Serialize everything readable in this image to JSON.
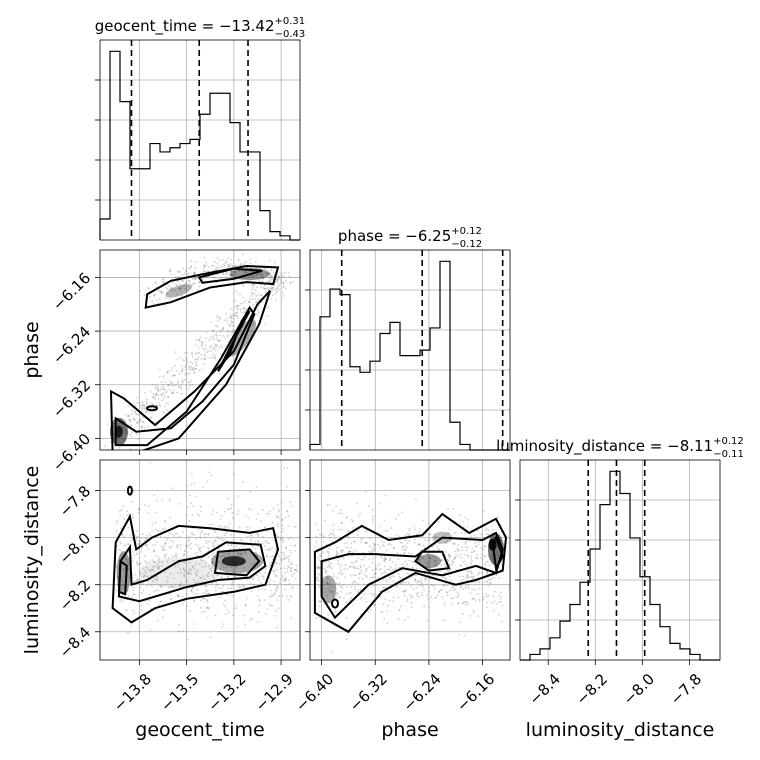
{
  "chart_data": {
    "type": "corner",
    "parameters": [
      "geocent_time",
      "phase",
      "luminosity_distance"
    ],
    "axis_labels": {
      "x": [
        "geocent_time",
        "phase",
        "luminosity_distance"
      ],
      "y": [
        "phase",
        "luminosity_distance"
      ]
    },
    "titles": [
      {
        "param": "geocent_time",
        "prefix": "geocent_time = ",
        "median": "−13.42",
        "plus": "+0.31",
        "minus": "−0.43"
      },
      {
        "param": "phase",
        "prefix": "phase = ",
        "median": "−6.25",
        "plus": "+0.12",
        "minus": "−0.12"
      },
      {
        "param": "luminosity_distance",
        "prefix": "luminosity_distance = ",
        "median": "−8.11",
        "plus": "+0.12",
        "minus": "−0.11"
      }
    ],
    "ranges": {
      "geocent_time": [
        -14.05,
        -12.78
      ],
      "phase": [
        -6.4173,
        -6.1191
      ],
      "luminosity_distance": [
        -8.52,
        -7.67
      ]
    },
    "ticks": {
      "geocent_time": [
        -13.8,
        -13.5,
        -13.2,
        -12.9
      ],
      "phase": [
        -6.4,
        -6.32,
        -6.24,
        -6.16
      ],
      "luminosity_distance": [
        -8.4,
        -8.2,
        -8.0,
        -7.8
      ]
    },
    "tick_labels": {
      "geocent_time": [
        "−13.8",
        "−13.5",
        "−13.2",
        "−12.9"
      ],
      "phase": [
        "−6.40",
        "−6.32",
        "−6.24",
        "−6.16"
      ],
      "luminosity_distance": [
        "−8.4",
        "−8.2",
        "−8.0",
        "−7.8"
      ]
    },
    "quantiles": {
      "geocent_time": [
        -13.85,
        -13.42,
        -13.11
      ],
      "phase": [
        -6.37,
        -6.25,
        -6.13
      ],
      "luminosity_distance": [
        -8.23,
        -8.11,
        -7.99
      ]
    },
    "histograms": {
      "geocent_time": {
        "edges_start": -14.05,
        "bin_width": 0.0635,
        "counts": [
          5,
          45,
          33,
          17,
          17,
          23,
          21,
          22,
          23,
          24,
          30,
          35,
          35,
          28,
          21,
          21,
          7,
          2,
          1,
          0
        ]
      },
      "phase": {
        "edges_start": -6.4173,
        "bin_width": 0.01491,
        "counts": [
          1,
          24,
          29,
          28,
          15,
          14,
          16,
          21,
          23,
          17,
          17,
          18,
          22,
          34,
          5,
          1,
          0,
          0,
          0,
          0
        ]
      },
      "luminosity_distance": {
        "edges_start": -8.52,
        "bin_width": 0.0425,
        "counts": [
          0,
          1,
          2,
          4,
          7,
          10,
          14,
          20,
          28,
          34,
          30,
          22,
          15,
          10,
          6,
          3,
          2,
          1,
          0,
          0
        ]
      }
    },
    "grid": true
  }
}
